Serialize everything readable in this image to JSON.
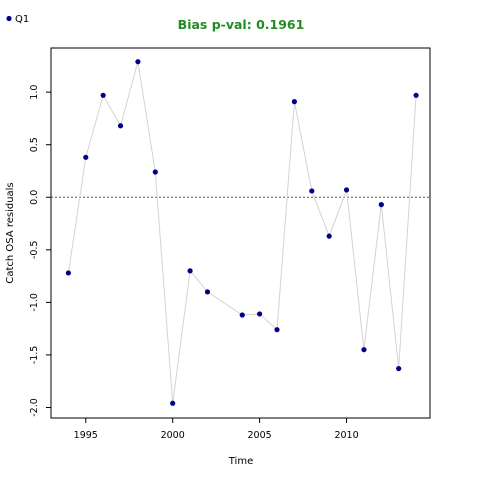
{
  "chart_data": {
    "type": "scatter",
    "title": "Bias p-val: 0.1961",
    "title_color": "#228b22",
    "xlabel": "Time",
    "ylabel": "Catch OSA residuals",
    "xlim": [
      1993,
      2014.8
    ],
    "ylim": [
      -2.1,
      1.42
    ],
    "x_ticks": [
      1995,
      2000,
      2005,
      2010
    ],
    "y_ticks": [
      -2.0,
      -1.5,
      -1.0,
      -0.5,
      0.0,
      0.5,
      1.0
    ],
    "y_tick_labels": [
      "-2.0",
      "-1.5",
      "-1.0",
      "-0.5",
      "0.0",
      "0.5",
      "1.0"
    ],
    "reference_line": 0,
    "legend": {
      "position": "top-left",
      "entries": [
        "Q1"
      ]
    },
    "marker_color": "#00008b",
    "line_color": "#d3d3d3",
    "series": [
      {
        "name": "Q1",
        "x": [
          1994,
          1995,
          1996,
          1997,
          1998,
          1999,
          2000,
          2001,
          2002,
          2004,
          2005,
          2006,
          2007,
          2008,
          2009,
          2010,
          2011,
          2012,
          2013,
          2014
        ],
        "y": [
          -0.72,
          0.38,
          0.97,
          0.68,
          1.29,
          0.24,
          -1.96,
          -0.7,
          -0.9,
          -1.12,
          -1.11,
          -1.26,
          0.91,
          0.06,
          -0.37,
          0.07,
          -1.45,
          -0.07,
          -1.63,
          0.97
        ]
      }
    ]
  }
}
